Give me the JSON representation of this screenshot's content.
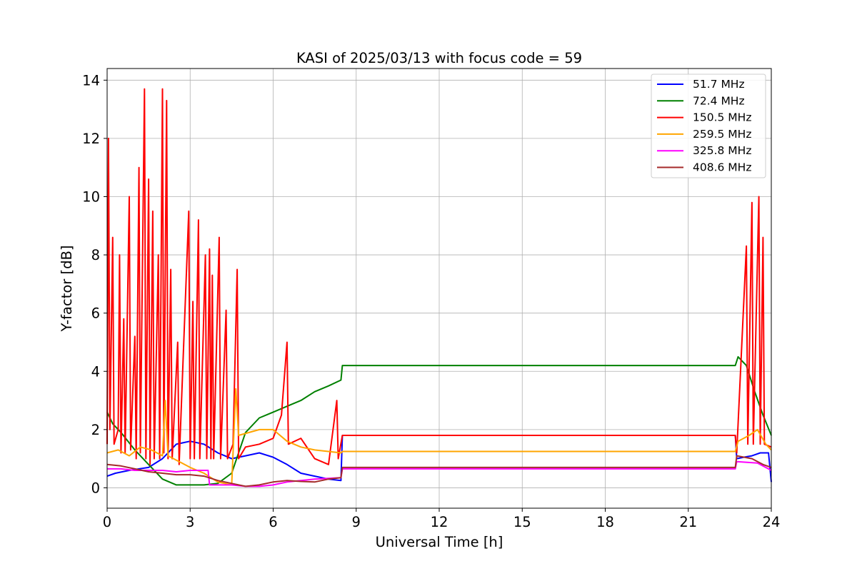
{
  "chart_data": {
    "type": "line",
    "title": "KASI of 2025/03/13 with focus code = 59",
    "xlabel": "Universal Time [h]",
    "ylabel": "Y-factor [dB]",
    "xlim": [
      0,
      24
    ],
    "ylim": [
      -0.7,
      14.4
    ],
    "xticks": [
      0,
      3,
      6,
      9,
      12,
      15,
      18,
      21,
      24
    ],
    "yticks": [
      0,
      2,
      4,
      6,
      8,
      10,
      12,
      14
    ],
    "grid": true,
    "legend_position": "top-right",
    "series": [
      {
        "name": " 51.7 MHz",
        "color": "#0000ff",
        "points": [
          [
            0,
            0.4
          ],
          [
            0.3,
            0.5
          ],
          [
            0.8,
            0.6
          ],
          [
            1.5,
            0.7
          ],
          [
            2,
            1.0
          ],
          [
            2.5,
            1.5
          ],
          [
            3,
            1.6
          ],
          [
            3.5,
            1.5
          ],
          [
            4,
            1.2
          ],
          [
            4.5,
            1.0
          ],
          [
            5,
            1.1
          ],
          [
            5.5,
            1.2
          ],
          [
            6,
            1.05
          ],
          [
            6.5,
            0.8
          ],
          [
            7,
            0.5
          ],
          [
            7.5,
            0.4
          ],
          [
            8,
            0.3
          ],
          [
            8.45,
            0.25
          ],
          [
            8.5,
            1.8
          ],
          [
            22.7,
            1.8
          ],
          [
            22.75,
            1.0
          ],
          [
            23,
            1.05
          ],
          [
            23.3,
            1.1
          ],
          [
            23.6,
            1.2
          ],
          [
            23.9,
            1.2
          ],
          [
            24,
            0.2
          ]
        ]
      },
      {
        "name": " 72.4 MHz",
        "color": "#008000",
        "points": [
          [
            0,
            2.6
          ],
          [
            0.2,
            2.2
          ],
          [
            0.5,
            1.9
          ],
          [
            1,
            1.3
          ],
          [
            1.5,
            0.8
          ],
          [
            2,
            0.3
          ],
          [
            2.5,
            0.1
          ],
          [
            3,
            0.1
          ],
          [
            3.5,
            0.1
          ],
          [
            4,
            0.15
          ],
          [
            4.5,
            0.5
          ],
          [
            5,
            1.9
          ],
          [
            5.5,
            2.4
          ],
          [
            6,
            2.6
          ],
          [
            6.5,
            2.8
          ],
          [
            7,
            3.0
          ],
          [
            7.5,
            3.3
          ],
          [
            8,
            3.5
          ],
          [
            8.45,
            3.7
          ],
          [
            8.5,
            4.2
          ],
          [
            22.7,
            4.2
          ],
          [
            22.8,
            4.5
          ],
          [
            23.1,
            4.2
          ],
          [
            23.4,
            3.3
          ],
          [
            23.7,
            2.5
          ],
          [
            24,
            1.8
          ]
        ]
      },
      {
        "name": " 150.5 MHz",
        "color": "#ff0000",
        "points": [
          [
            0,
            1.5
          ],
          [
            0.05,
            12.0
          ],
          [
            0.1,
            2.0
          ],
          [
            0.2,
            8.6
          ],
          [
            0.25,
            1.5
          ],
          [
            0.4,
            2.0
          ],
          [
            0.45,
            8.0
          ],
          [
            0.5,
            1.2
          ],
          [
            0.6,
            5.8
          ],
          [
            0.65,
            1.2
          ],
          [
            0.8,
            10.0
          ],
          [
            0.85,
            1.3
          ],
          [
            1.0,
            5.2
          ],
          [
            1.05,
            1.0
          ],
          [
            1.15,
            11.0
          ],
          [
            1.2,
            1.2
          ],
          [
            1.35,
            13.7
          ],
          [
            1.4,
            1.0
          ],
          [
            1.5,
            10.6
          ],
          [
            1.55,
            0.8
          ],
          [
            1.65,
            9.5
          ],
          [
            1.7,
            1.0
          ],
          [
            1.85,
            8.0
          ],
          [
            1.9,
            1.0
          ],
          [
            2.0,
            13.7
          ],
          [
            2.05,
            1.2
          ],
          [
            2.15,
            13.3
          ],
          [
            2.2,
            1.0
          ],
          [
            2.3,
            7.5
          ],
          [
            2.35,
            1.0
          ],
          [
            2.55,
            5.0
          ],
          [
            2.6,
            0.8
          ],
          [
            2.95,
            9.5
          ],
          [
            3.0,
            1.0
          ],
          [
            3.1,
            6.4
          ],
          [
            3.15,
            1.0
          ],
          [
            3.3,
            9.2
          ],
          [
            3.35,
            1.0
          ],
          [
            3.55,
            8.0
          ],
          [
            3.6,
            1.0
          ],
          [
            3.7,
            8.2
          ],
          [
            3.75,
            1.0
          ],
          [
            3.8,
            7.3
          ],
          [
            3.85,
            1.0
          ],
          [
            4.05,
            8.6
          ],
          [
            4.1,
            1.0
          ],
          [
            4.3,
            6.1
          ],
          [
            4.35,
            1.0
          ],
          [
            4.55,
            1.5
          ],
          [
            4.7,
            7.5
          ],
          [
            4.75,
            1.0
          ],
          [
            5.0,
            1.4
          ],
          [
            5.5,
            1.5
          ],
          [
            6.0,
            1.7
          ],
          [
            6.3,
            2.5
          ],
          [
            6.5,
            5.0
          ],
          [
            6.55,
            1.5
          ],
          [
            7.0,
            1.7
          ],
          [
            7.5,
            1.0
          ],
          [
            8.0,
            0.8
          ],
          [
            8.3,
            3.0
          ],
          [
            8.35,
            1.0
          ],
          [
            8.5,
            1.8
          ],
          [
            22.7,
            1.8
          ],
          [
            22.75,
            1.2
          ],
          [
            23.1,
            8.3
          ],
          [
            23.15,
            1.5
          ],
          [
            23.3,
            9.8
          ],
          [
            23.35,
            1.5
          ],
          [
            23.55,
            10.0
          ],
          [
            23.6,
            1.5
          ],
          [
            23.7,
            8.6
          ],
          [
            23.75,
            1.5
          ],
          [
            24,
            1.4
          ]
        ]
      },
      {
        "name": " 259.5 MHz",
        "color": "#ffa500",
        "points": [
          [
            0,
            1.2
          ],
          [
            0.4,
            1.3
          ],
          [
            0.8,
            1.1
          ],
          [
            1.2,
            1.4
          ],
          [
            1.6,
            1.3
          ],
          [
            2.0,
            1.1
          ],
          [
            2.1,
            3.0
          ],
          [
            2.2,
            1.1
          ],
          [
            2.6,
            0.9
          ],
          [
            3.0,
            0.7
          ],
          [
            3.5,
            0.5
          ],
          [
            4.0,
            0.2
          ],
          [
            4.5,
            0.1
          ],
          [
            4.65,
            3.4
          ],
          [
            4.75,
            1.8
          ],
          [
            5.5,
            2.0
          ],
          [
            6.0,
            2.0
          ],
          [
            6.5,
            1.6
          ],
          [
            7.0,
            1.4
          ],
          [
            7.5,
            1.3
          ],
          [
            8.45,
            1.2
          ],
          [
            8.5,
            1.25
          ],
          [
            22.7,
            1.25
          ],
          [
            22.8,
            1.6
          ],
          [
            23.2,
            1.8
          ],
          [
            23.5,
            2.0
          ],
          [
            23.8,
            1.5
          ],
          [
            24,
            1.3
          ]
        ]
      },
      {
        "name": " 325.8 MHz",
        "color": "#ff00ff",
        "points": [
          [
            0,
            0.65
          ],
          [
            0.5,
            0.65
          ],
          [
            1,
            0.6
          ],
          [
            1.5,
            0.6
          ],
          [
            2,
            0.6
          ],
          [
            2.5,
            0.55
          ],
          [
            3,
            0.6
          ],
          [
            3.65,
            0.6
          ],
          [
            3.7,
            0.1
          ],
          [
            4.5,
            0.1
          ],
          [
            5,
            0.05
          ],
          [
            5.5,
            0.05
          ],
          [
            6,
            0.1
          ],
          [
            6.5,
            0.2
          ],
          [
            7,
            0.25
          ],
          [
            7.5,
            0.3
          ],
          [
            8.45,
            0.35
          ],
          [
            8.5,
            0.65
          ],
          [
            22.7,
            0.65
          ],
          [
            22.75,
            0.9
          ],
          [
            23.5,
            0.85
          ],
          [
            24,
            0.6
          ]
        ]
      },
      {
        "name": " 408.6 MHz",
        "color": "#a52a2a",
        "points": [
          [
            0,
            0.8
          ],
          [
            0.5,
            0.75
          ],
          [
            1,
            0.65
          ],
          [
            1.5,
            0.55
          ],
          [
            2,
            0.5
          ],
          [
            2.5,
            0.45
          ],
          [
            3,
            0.45
          ],
          [
            3.5,
            0.4
          ],
          [
            4,
            0.25
          ],
          [
            4.5,
            0.15
          ],
          [
            5,
            0.05
          ],
          [
            5.5,
            0.1
          ],
          [
            6,
            0.2
          ],
          [
            6.5,
            0.25
          ],
          [
            7,
            0.22
          ],
          [
            7.5,
            0.2
          ],
          [
            8,
            0.3
          ],
          [
            8.45,
            0.35
          ],
          [
            8.5,
            0.7
          ],
          [
            22.7,
            0.7
          ],
          [
            22.75,
            1.1
          ],
          [
            23.3,
            1.0
          ],
          [
            23.7,
            0.8
          ],
          [
            24,
            0.7
          ]
        ]
      }
    ]
  }
}
